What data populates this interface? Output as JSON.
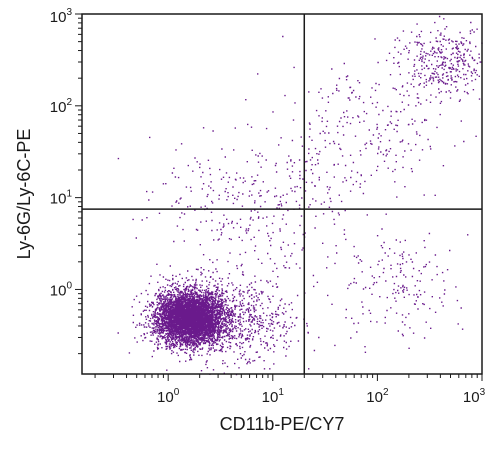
{
  "chart_data": {
    "type": "scatter",
    "title": "",
    "xlabel": "CD11b-PE/CY7",
    "ylabel": "Ly-6G/Ly-6C-PE",
    "x_scale": "log",
    "y_scale": "log",
    "xlim": [
      0.15,
      1000
    ],
    "ylim": [
      0.12,
      1000
    ],
    "x_ticks": [
      {
        "base": "10",
        "exp": "0",
        "value": 1
      },
      {
        "base": "10",
        "exp": "1",
        "value": 10
      },
      {
        "base": "10",
        "exp": "2",
        "value": 100
      },
      {
        "base": "10",
        "exp": "3",
        "value": 1000
      }
    ],
    "y_ticks": [
      {
        "base": "10",
        "exp": "0",
        "value": 1
      },
      {
        "base": "10",
        "exp": "1",
        "value": 10
      },
      {
        "base": "10",
        "exp": "2",
        "value": 100
      },
      {
        "base": "10",
        "exp": "3",
        "value": 1000
      }
    ],
    "quadrant_gates": {
      "x": 20,
      "y": 7.5
    },
    "point_color": "#6a1a8c",
    "populations": [
      {
        "center": [
          1.6,
          0.5
        ],
        "spread_decades": [
          0.16,
          0.14
        ],
        "count": 5200,
        "note": "dense double-negative cluster"
      },
      {
        "center": [
          4.0,
          0.5
        ],
        "spread_decades": [
          0.35,
          0.25
        ],
        "count": 700,
        "note": "halo around main cluster"
      },
      {
        "center": [
          450,
          300
        ],
        "spread_decades": [
          0.22,
          0.2
        ],
        "count": 380,
        "note": "double-positive cluster"
      },
      {
        "center": [
          80,
          60
        ],
        "spread_decades": [
          0.4,
          0.35
        ],
        "count": 220,
        "note": "upper-right spread"
      },
      {
        "center": [
          140,
          1.2
        ],
        "spread_decades": [
          0.3,
          0.3
        ],
        "count": 180,
        "note": "CD11b+ Ly-6G- cells"
      },
      {
        "center": [
          5,
          8
        ],
        "spread_decades": [
          0.45,
          0.35
        ],
        "count": 260,
        "note": "diagonal transition"
      },
      {
        "center": [
          20,
          15
        ],
        "spread_decades": [
          0.3,
          0.3
        ],
        "count": 80,
        "note": "events near gate intersection"
      }
    ]
  }
}
